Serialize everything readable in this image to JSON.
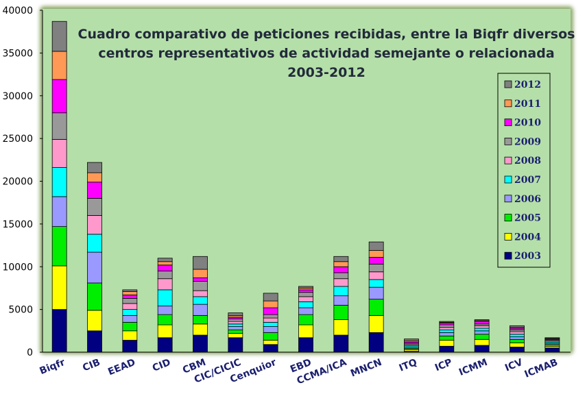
{
  "chart_data": {
    "type": "bar",
    "stacked": true,
    "title": [
      "Cuadro comparativo de peticiones recibidas, entre la  Biqfr diversos",
      "centros representativos de actividad semejante o relacionada",
      "2003-2012"
    ],
    "categories": [
      "Biqfr",
      "CIB",
      "EEAD",
      "CID",
      "CBM",
      "CIC/CICIC",
      "Cenquior",
      "EBD",
      "CCMA/ICA",
      "MNCN",
      "ITQ",
      "ICP",
      "ICMM",
      "ICV",
      "ICMAB"
    ],
    "ylim": [
      0,
      40000
    ],
    "yticks": [
      "0",
      "5000",
      "10000",
      "15000",
      "20000",
      "25000",
      "30000",
      "35000",
      "40000"
    ],
    "grid": false,
    "legend_position": "right",
    "background_color": "#b5dfa9",
    "series": [
      {
        "name": "2003",
        "color": "#000080",
        "values": [
          5000,
          2500,
          1400,
          1700,
          2000,
          1700,
          900,
          1700,
          2000,
          2300,
          100,
          700,
          800,
          600,
          500
        ]
      },
      {
        "name": "2004",
        "color": "#ffff00",
        "values": [
          5100,
          2400,
          1100,
          1500,
          1300,
          500,
          500,
          1500,
          1800,
          2000,
          200,
          700,
          700,
          500,
          200
        ]
      },
      {
        "name": "2005",
        "color": "#00ee00",
        "values": [
          4600,
          3200,
          1000,
          1200,
          1000,
          400,
          900,
          1200,
          1700,
          1900,
          150,
          500,
          600,
          400,
          200
        ]
      },
      {
        "name": "2006",
        "color": "#9999ff",
        "values": [
          3500,
          3600,
          800,
          1000,
          1300,
          400,
          700,
          800,
          1100,
          1400,
          150,
          400,
          400,
          300,
          150
        ]
      },
      {
        "name": "2007",
        "color": "#00ffff",
        "values": [
          3400,
          2100,
          700,
          1900,
          900,
          300,
          500,
          700,
          1100,
          900,
          150,
          300,
          300,
          300,
          150
        ]
      },
      {
        "name": "2008",
        "color": "#ff99cc",
        "values": [
          3300,
          2200,
          700,
          1300,
          700,
          300,
          500,
          600,
          900,
          900,
          150,
          300,
          300,
          300,
          150
        ]
      },
      {
        "name": "2009",
        "color": "#999999",
        "values": [
          3100,
          2000,
          600,
          900,
          1100,
          300,
          400,
          500,
          700,
          900,
          150,
          300,
          200,
          200,
          100
        ]
      },
      {
        "name": "2010",
        "color": "#ff00ff",
        "values": [
          3900,
          1900,
          400,
          700,
          400,
          200,
          800,
          300,
          700,
          800,
          150,
          200,
          300,
          200,
          100
        ]
      },
      {
        "name": "2011",
        "color": "#ff9955",
        "values": [
          3300,
          1100,
          400,
          400,
          1000,
          200,
          800,
          200,
          600,
          800,
          150,
          100,
          100,
          100,
          50
        ]
      },
      {
        "name": "2012",
        "color": "#808080",
        "values": [
          3500,
          1200,
          200,
          400,
          1500,
          300,
          900,
          200,
          600,
          1000,
          200,
          100,
          100,
          200,
          100
        ]
      }
    ]
  },
  "colors": {
    "panel_background": "#b5dfa9",
    "panel_border": "#7f9a58",
    "title": "#222a3a",
    "category_labels": "#1a1f6e"
  }
}
